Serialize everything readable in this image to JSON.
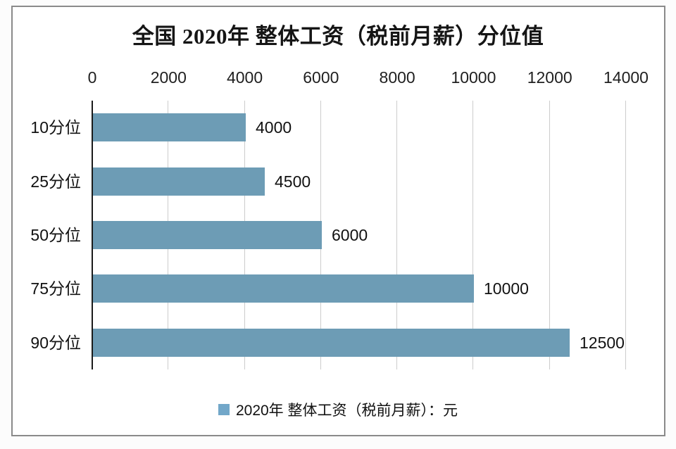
{
  "page": {
    "background": "#ffffff",
    "frame_border_color": "#8a8a8a"
  },
  "chart_data": {
    "type": "bar",
    "orientation": "horizontal",
    "title": "全国 2020年 整体工资（税前月薪）分位值",
    "categories": [
      "10分位",
      "25分位",
      "50分位",
      "75分位",
      "90分位"
    ],
    "values": [
      4000,
      4500,
      6000,
      10000,
      12500
    ],
    "value_labels": [
      "4000",
      "4500",
      "6000",
      "10000",
      "12500"
    ],
    "series_name": "2020年 整体工资（税前月薪）：元",
    "x_ticks": [
      0,
      2000,
      4000,
      6000,
      8000,
      10000,
      12000,
      14000
    ],
    "tick_labels": [
      "0",
      "2000",
      "4000",
      "6000",
      "8000",
      "10000",
      "12000",
      "14000"
    ],
    "xlim": [
      0,
      14000
    ],
    "xlabel": "",
    "ylabel": "",
    "grid": true,
    "axis_position": "top",
    "legend_position": "bottom",
    "bar_color": "#6d9cb5",
    "legend_marker_color": "#72a7c9",
    "gridline_color": "#cccccc",
    "axis_line_color": "#1a1a1a"
  }
}
